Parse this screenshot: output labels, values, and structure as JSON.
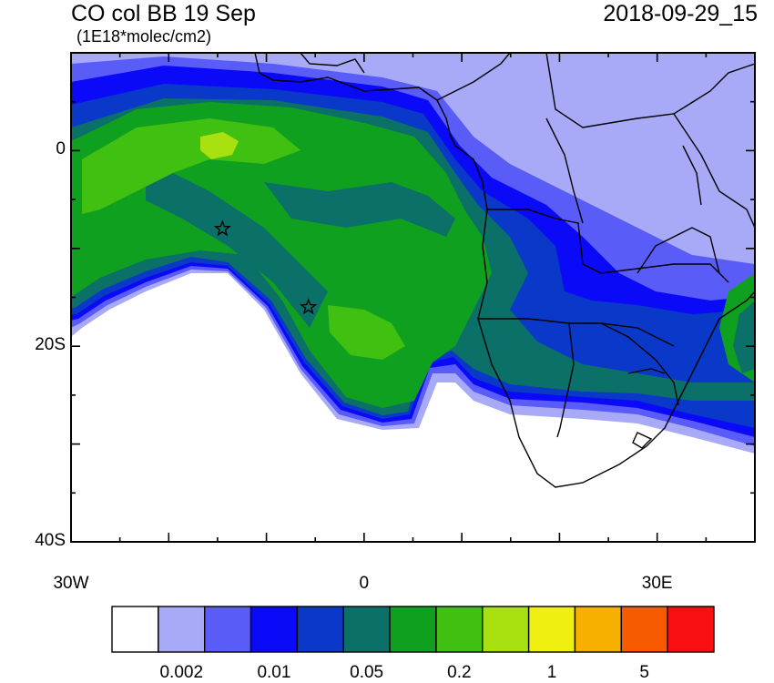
{
  "map": {
    "title": "CO col BB 19 Sep",
    "units": "(1E18*molec/cm2)",
    "timestamp": "2018-09-29_15",
    "lat_labels": [
      {
        "text": "0",
        "lat": 0
      },
      {
        "text": "20S",
        "lat": -20
      },
      {
        "text": "40S",
        "lat": -40
      }
    ],
    "lon_labels": [
      {
        "text": "30W",
        "lon": -30
      },
      {
        "text": "0",
        "lon": 0
      },
      {
        "text": "30E",
        "lon": 30
      }
    ],
    "extent": {
      "lon_min": -30,
      "lon_max": 40,
      "lat_min": -40,
      "lat_max": 10
    },
    "markers": [
      {
        "name": "star",
        "lon": -14.5,
        "lat": -8.0
      },
      {
        "name": "star",
        "lon": -5.7,
        "lat": -16.0
      }
    ],
    "colorbar": {
      "colors": [
        "#ffffff",
        "#a8aaf8",
        "#5a5cf8",
        "#0a0af8",
        "#0a38c8",
        "#0a7068",
        "#10a020",
        "#40c010",
        "#a8e010",
        "#f0f010",
        "#f8b000",
        "#f85a00",
        "#f81010"
      ],
      "labels": [
        "0.002",
        "0.01",
        "0.05",
        "0.2",
        "1",
        "5"
      ],
      "label_box_index": [
        2,
        4,
        6,
        8,
        10,
        12
      ]
    }
  }
}
